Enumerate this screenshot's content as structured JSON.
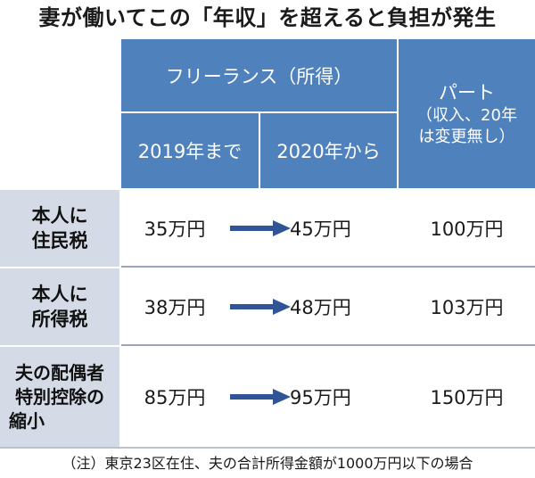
{
  "title": "妻が働いてこの「年収」を超えると負担が発生",
  "header": {
    "freelance": "フリーランス（所得）",
    "until_2019": "2019年まで",
    "from_2020": "2020年から",
    "part_line1": "パート",
    "part_line2": "（収入、20年",
    "part_line3": "は変更無し）"
  },
  "rows": [
    {
      "label_line1": "本人に",
      "label_line2": "住民税",
      "label_line3": "",
      "v2019": "35万円",
      "v2020": "45万円",
      "part": "100万円"
    },
    {
      "label_line1": "本人に",
      "label_line2": "所得税",
      "label_line3": "",
      "v2019": "38万円",
      "v2020": "48万円",
      "part": "103万円"
    },
    {
      "label_line1": "夫の配偶者",
      "label_line2": "特別控除の",
      "label_line3": "縮小",
      "v2019": "85万円",
      "v2020": "95万円",
      "part": "150万円"
    }
  ],
  "note": "（注）東京23区在住、夫の合計所得金額が1000万円以下の場合",
  "colors": {
    "header_blue": "#4f81bd",
    "row_head": "#d4dbe7",
    "arrow": "#2f5597"
  }
}
